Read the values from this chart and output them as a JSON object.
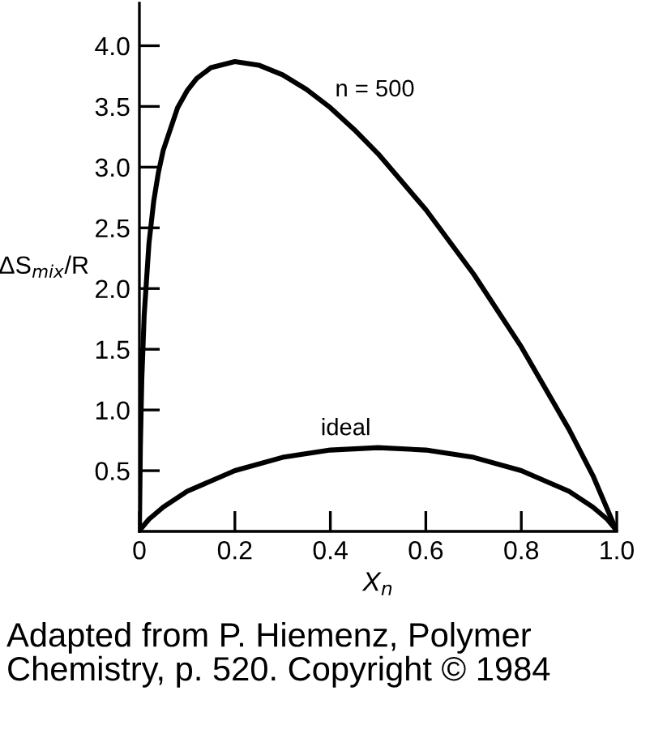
{
  "chart_data": {
    "type": "line",
    "xlabel": "X$_{n}$",
    "ylabel": "ΔS$_{mix}$/R",
    "xlim": [
      0,
      1.0
    ],
    "ylim": [
      0,
      4.35
    ],
    "xticks": [
      0,
      0.2,
      0.4,
      0.6,
      0.8,
      {
        "value": 1.0,
        "label": "1.0"
      }
    ],
    "yticks": [
      0.5,
      {
        "value": 1.0,
        "label": "1.0"
      },
      1.5,
      {
        "value": 2.0,
        "label": "2.0"
      },
      2.5,
      {
        "value": 3.0,
        "label": "3.0"
      },
      3.5,
      {
        "value": 4.0,
        "label": "4.0"
      }
    ],
    "line_style": "solid",
    "series": [
      {
        "color": "#000000",
        "x": [
          0.005,
          0.02,
          0.05,
          0.1,
          0.2,
          0.3,
          0.4,
          0.5,
          0.6,
          0.7,
          0.8,
          0.9,
          0.95,
          0.98,
          0.995
        ],
        "values": [
          0.03,
          0.1,
          0.2,
          0.33,
          0.5,
          0.61,
          0.67,
          0.69,
          0.67,
          0.61,
          0.5,
          0.33,
          0.2,
          0.1,
          0.03
        ]
      },
      {
        "color": "#000000",
        "x": [
          0,
          0.002,
          0.005,
          0.01,
          0.02,
          0.03,
          0.04,
          0.05,
          0.08,
          0.1,
          0.12,
          0.15,
          0.2,
          0.25,
          0.3,
          0.35,
          0.4,
          0.45,
          0.5,
          0.6,
          0.7,
          0.8,
          0.9,
          0.95,
          1.0
        ],
        "values": [
          0,
          0.69,
          1.25,
          1.78,
          2.37,
          2.72,
          2.96,
          3.14,
          3.49,
          3.63,
          3.73,
          3.82,
          3.87,
          3.84,
          3.76,
          3.64,
          3.49,
          3.31,
          3.11,
          2.65,
          2.12,
          1.52,
          0.84,
          0.46,
          0
        ]
      }
    ],
    "annotations": [
      {
        "text": "ideal",
        "x": 0.38,
        "y": 0.66
      },
      {
        "text": "n = 500",
        "x": 0.41,
        "y": 3.45
      },
      "Adapted from P. Hiemenz, Polymer Chemistry, p. 520. Copyright © 1984"
    ]
  }
}
